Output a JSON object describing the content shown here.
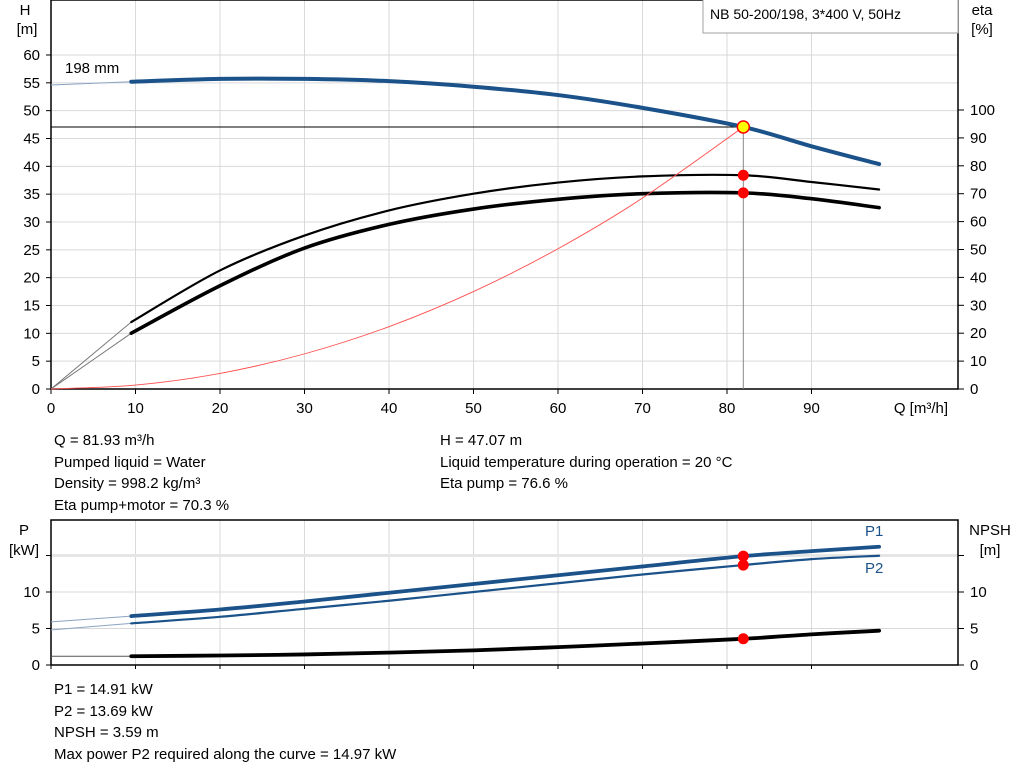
{
  "legend_box": "NB 50-200/198, 3*400 V, 50Hz",
  "impeller_label": "198 mm",
  "colors": {
    "head": "#1a5289",
    "power": "#1a5289",
    "efficiency": "#000000",
    "npsh": "#000000",
    "system": "#ff4d4d",
    "point": "#ff0000",
    "duty_point_fill": "#ffff00",
    "grid": "#d9d9d9"
  },
  "chart_data": [
    {
      "type": "line",
      "title": "",
      "xlabel": "Q [m³/h]",
      "ylabel": "H [m]",
      "ylabel_unit": "[m]",
      "ylabel_name": "H",
      "y2label_name": "eta",
      "y2label_unit": "[%]",
      "xlim": [
        0,
        107
      ],
      "ylim": [
        0,
        69.9
      ],
      "y2lim": [
        0,
        139.4
      ],
      "xticks": [
        0,
        10,
        20,
        30,
        40,
        50,
        60,
        70,
        80,
        90
      ],
      "yticks": [
        0,
        5,
        10,
        15,
        20,
        25,
        30,
        35,
        40,
        45,
        50,
        55,
        60
      ],
      "y2ticks": [
        0,
        10,
        20,
        30,
        40,
        50,
        60,
        70,
        80,
        90,
        100
      ],
      "grid": true,
      "series": [
        {
          "key": "head",
          "axis": "left",
          "x": [
            0,
            9.5,
            20,
            30,
            40,
            50,
            60,
            70,
            81.93,
            90,
            98
          ],
          "y": [
            54.6,
            55.2,
            55.7,
            55.7,
            55.3,
            54.3,
            52.8,
            50.5,
            47.07,
            43.6,
            40.4
          ]
        },
        {
          "key": "eta_pump",
          "axis": "right",
          "x": [
            0,
            9.5,
            20,
            30,
            40,
            50,
            60,
            70,
            81.93,
            90,
            98
          ],
          "y": [
            0,
            24,
            42.5,
            55,
            64,
            70,
            74,
            76.2,
            76.6,
            74.2,
            71.5
          ]
        },
        {
          "key": "eta_pump_motor",
          "axis": "right",
          "x": [
            0,
            9.5,
            20,
            30,
            40,
            50,
            60,
            70,
            81.93,
            90,
            98
          ],
          "y": [
            0,
            20,
            37,
            50.5,
            59,
            64.5,
            68,
            70,
            70.3,
            68.2,
            65
          ]
        },
        {
          "key": "system",
          "axis": "left",
          "x": [
            0,
            10,
            20,
            30,
            40,
            50,
            60,
            70,
            81.93
          ],
          "y": [
            0,
            0.7,
            2.8,
            6.31,
            11.2,
            17.5,
            25.2,
            34.3,
            47.07
          ]
        }
      ],
      "duty_point": {
        "Q": 81.93,
        "H": 47.07,
        "eta_pump": 76.6,
        "eta_pump_motor": 70.3
      }
    },
    {
      "type": "line",
      "title": "",
      "ylabel_name": "P",
      "ylabel_unit": "[kW]",
      "y2label_name": "NPSH",
      "y2label_unit": "[m]",
      "xlim": [
        0,
        107
      ],
      "ylim": [
        0,
        19.9
      ],
      "yticks": [
        0,
        5,
        10
      ],
      "y2ticks": [
        0,
        5,
        10
      ],
      "grid": true,
      "series": [
        {
          "key": "P1",
          "name": "P1",
          "x": [
            0,
            9.5,
            20,
            30,
            40,
            50,
            60,
            70,
            81.93,
            90,
            98
          ],
          "y": [
            5.9,
            6.7,
            7.6,
            8.7,
            9.9,
            11.1,
            12.3,
            13.5,
            14.91,
            15.6,
            16.2
          ]
        },
        {
          "key": "P2",
          "name": "P2",
          "x": [
            0,
            9.5,
            20,
            30,
            40,
            50,
            60,
            70,
            81.93,
            90,
            98
          ],
          "y": [
            4.8,
            5.7,
            6.6,
            7.7,
            8.8,
            10.0,
            11.2,
            12.4,
            13.69,
            14.5,
            14.97
          ]
        },
        {
          "key": "npsh",
          "x": [
            0,
            9.5,
            20,
            30,
            40,
            50,
            60,
            70,
            81.93,
            90,
            98
          ],
          "y": [
            1.2,
            1.2,
            1.3,
            1.45,
            1.7,
            2.0,
            2.45,
            2.95,
            3.59,
            4.2,
            4.7
          ]
        }
      ],
      "duty_point": {
        "Q": 81.93,
        "P1": 14.91,
        "P2": 13.69,
        "NPSH": 3.59
      }
    }
  ],
  "info_top": {
    "left": [
      "Q = 81.93 m³/h",
      "Pumped liquid = Water",
      "Density = 998.2 kg/m³",
      "Eta pump+motor = 70.3 %"
    ],
    "right": [
      "H = 47.07 m",
      "Liquid temperature during operation = 20 °C",
      "Eta pump = 76.6 %"
    ]
  },
  "info_bottom": [
    "P1 = 14.91 kW",
    "P2 = 13.69 kW",
    "NPSH = 3.59 m",
    "Max power P2 required along the curve = 14.97 kW"
  ]
}
